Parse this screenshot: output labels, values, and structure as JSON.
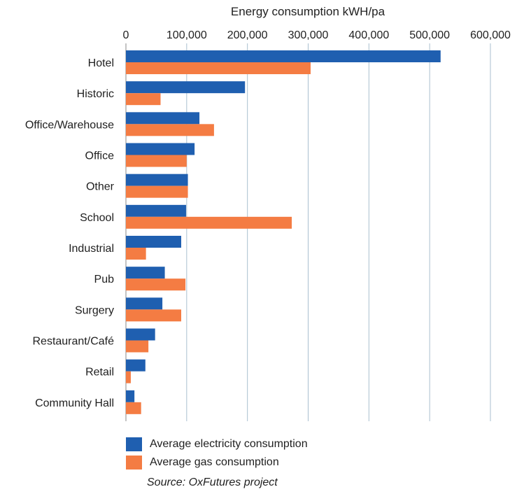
{
  "chart_data": {
    "type": "bar",
    "orientation": "horizontal",
    "title": "",
    "xlabel": "Energy consumption kWH/pa",
    "xaxis_position": "top",
    "xlim": [
      0,
      600000
    ],
    "xticks": [
      "0",
      "100,000",
      "200,000",
      "300,000",
      "400,000",
      "500,000",
      "600,000"
    ],
    "grid": true,
    "categories": [
      "Hotel",
      "Historic",
      "Office/Warehouse",
      "Office",
      "Other",
      "School",
      "Industrial",
      "Pub",
      "Surgery",
      "Restaurant/Café",
      "Retail",
      "Community Hall"
    ],
    "series": [
      {
        "name": "Average electricity consumption",
        "color": "#1f5fb0",
        "values": [
          518000,
          196000,
          121000,
          113000,
          102000,
          99000,
          91000,
          64000,
          60000,
          48000,
          32000,
          14000
        ]
      },
      {
        "name": "Average gas consumption",
        "color": "#f47c43",
        "values": [
          304000,
          57000,
          145000,
          100000,
          102000,
          273000,
          33000,
          98000,
          91000,
          37000,
          8000,
          25000
        ]
      }
    ],
    "legend_position": "bottom-left",
    "source": "Source: OxFutures project"
  }
}
